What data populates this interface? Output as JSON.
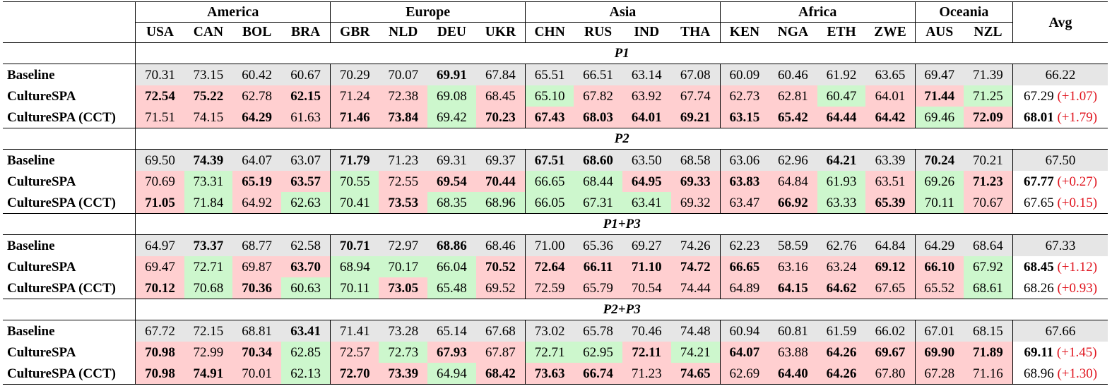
{
  "groups": [
    {
      "name": "America",
      "countries": [
        "USA",
        "CAN",
        "BOL",
        "BRA"
      ]
    },
    {
      "name": "Europe",
      "countries": [
        "GBR",
        "NLD",
        "DEU",
        "UKR"
      ]
    },
    {
      "name": "Asia",
      "countries": [
        "CHN",
        "RUS",
        "IND",
        "THA"
      ]
    },
    {
      "name": "Africa",
      "countries": [
        "KEN",
        "NGA",
        "ETH",
        "ZWE"
      ]
    },
    {
      "name": "Oceania",
      "countries": [
        "AUS",
        "NZL"
      ]
    }
  ],
  "avg_header": "Avg",
  "sections": [
    {
      "title": "P1",
      "rows": [
        {
          "label": "Baseline",
          "values": [
            "70.31",
            "73.15",
            "60.42",
            "60.67",
            "70.29",
            "70.07",
            "69.91",
            "67.84",
            "65.51",
            "66.51",
            "63.14",
            "67.08",
            "60.09",
            "60.46",
            "61.92",
            "63.65",
            "69.47",
            "71.39"
          ],
          "bold": [
            0,
            0,
            0,
            0,
            0,
            0,
            1,
            0,
            0,
            0,
            0,
            0,
            0,
            0,
            0,
            0,
            0,
            0
          ],
          "color": [
            "",
            "",
            "",
            "",
            "",
            "",
            "",
            "",
            "",
            "",
            "",
            "",
            "",
            "",
            "",
            "",
            "",
            ""
          ],
          "avg": "66.22",
          "avg_bold": false,
          "delta": ""
        },
        {
          "label": "CultureSPA",
          "values": [
            "72.54",
            "75.22",
            "62.78",
            "62.15",
            "71.24",
            "72.38",
            "69.08",
            "68.45",
            "65.10",
            "67.82",
            "63.92",
            "67.74",
            "62.73",
            "62.81",
            "60.47",
            "64.01",
            "71.44",
            "71.25"
          ],
          "bold": [
            1,
            1,
            0,
            1,
            0,
            0,
            0,
            0,
            0,
            0,
            0,
            0,
            0,
            0,
            0,
            0,
            1,
            0
          ],
          "color": [
            "r",
            "r",
            "r",
            "r",
            "r",
            "r",
            "g",
            "r",
            "g",
            "r",
            "r",
            "r",
            "r",
            "r",
            "g",
            "r",
            "r",
            "g"
          ],
          "avg": "67.29",
          "avg_bold": false,
          "delta": "(+1.07)"
        },
        {
          "label": "CultureSPA (CCT)",
          "values": [
            "71.51",
            "74.15",
            "64.29",
            "61.63",
            "71.46",
            "73.84",
            "69.42",
            "70.23",
            "67.43",
            "68.03",
            "64.01",
            "69.21",
            "63.15",
            "65.42",
            "64.44",
            "64.42",
            "69.46",
            "72.09"
          ],
          "bold": [
            0,
            0,
            1,
            0,
            1,
            1,
            0,
            1,
            1,
            1,
            1,
            1,
            1,
            1,
            1,
            1,
            0,
            1
          ],
          "color": [
            "r",
            "r",
            "r",
            "r",
            "r",
            "r",
            "g",
            "r",
            "r",
            "r",
            "r",
            "r",
            "r",
            "r",
            "r",
            "r",
            "g",
            "r"
          ],
          "avg": "68.01",
          "avg_bold": true,
          "delta": "(+1.79)"
        }
      ]
    },
    {
      "title": "P2",
      "rows": [
        {
          "label": "Baseline",
          "values": [
            "69.50",
            "74.39",
            "64.07",
            "63.07",
            "71.79",
            "71.23",
            "69.31",
            "69.37",
            "67.51",
            "68.60",
            "63.50",
            "68.58",
            "63.06",
            "62.96",
            "64.21",
            "63.39",
            "70.24",
            "70.21"
          ],
          "bold": [
            0,
            1,
            0,
            0,
            1,
            0,
            0,
            0,
            1,
            1,
            0,
            0,
            0,
            0,
            1,
            0,
            1,
            0
          ],
          "color": [
            "",
            "",
            "",
            "",
            "",
            "",
            "",
            "",
            "",
            "",
            "",
            "",
            "",
            "",
            "",
            "",
            "",
            ""
          ],
          "avg": "67.50",
          "avg_bold": false,
          "delta": ""
        },
        {
          "label": "CultureSPA",
          "values": [
            "70.69",
            "73.31",
            "65.19",
            "63.57",
            "70.55",
            "72.55",
            "69.54",
            "70.44",
            "66.65",
            "68.44",
            "64.95",
            "69.33",
            "63.83",
            "64.84",
            "61.93",
            "63.51",
            "69.26",
            "71.23"
          ],
          "bold": [
            0,
            0,
            1,
            1,
            0,
            0,
            1,
            1,
            0,
            0,
            1,
            1,
            1,
            0,
            0,
            0,
            0,
            1
          ],
          "color": [
            "r",
            "g",
            "r",
            "r",
            "g",
            "r",
            "r",
            "r",
            "g",
            "g",
            "r",
            "r",
            "r",
            "r",
            "g",
            "r",
            "g",
            "r"
          ],
          "avg": "67.77",
          "avg_bold": true,
          "delta": "(+0.27)"
        },
        {
          "label": "CultureSPA (CCT)",
          "values": [
            "71.05",
            "71.84",
            "64.92",
            "62.63",
            "70.41",
            "73.53",
            "68.35",
            "68.96",
            "66.05",
            "67.31",
            "63.41",
            "69.32",
            "63.47",
            "66.92",
            "63.33",
            "65.39",
            "70.11",
            "70.67"
          ],
          "bold": [
            1,
            0,
            0,
            0,
            0,
            1,
            0,
            0,
            0,
            0,
            0,
            0,
            0,
            1,
            0,
            1,
            0,
            0
          ],
          "color": [
            "r",
            "g",
            "r",
            "g",
            "g",
            "r",
            "g",
            "g",
            "g",
            "g",
            "g",
            "r",
            "r",
            "r",
            "g",
            "r",
            "g",
            "r"
          ],
          "avg": "67.65",
          "avg_bold": false,
          "delta": "(+0.15)"
        }
      ]
    },
    {
      "title": "P1+P3",
      "rows": [
        {
          "label": "Baseline",
          "values": [
            "64.97",
            "73.37",
            "68.77",
            "62.58",
            "70.71",
            "72.97",
            "68.86",
            "68.46",
            "71.00",
            "65.36",
            "69.27",
            "74.26",
            "62.23",
            "58.59",
            "62.76",
            "64.84",
            "64.29",
            "68.64"
          ],
          "bold": [
            0,
            1,
            0,
            0,
            1,
            0,
            1,
            0,
            0,
            0,
            0,
            0,
            0,
            0,
            0,
            0,
            0,
            0
          ],
          "color": [
            "",
            "",
            "",
            "",
            "",
            "",
            "",
            "",
            "",
            "",
            "",
            "",
            "",
            "",
            "",
            "",
            "",
            ""
          ],
          "avg": "67.33",
          "avg_bold": false,
          "delta": ""
        },
        {
          "label": "CultureSPA",
          "values": [
            "69.47",
            "72.71",
            "69.87",
            "63.70",
            "68.94",
            "70.17",
            "66.04",
            "70.52",
            "72.64",
            "66.11",
            "71.10",
            "74.72",
            "66.65",
            "63.16",
            "63.24",
            "69.12",
            "66.10",
            "67.92"
          ],
          "bold": [
            0,
            0,
            0,
            1,
            0,
            0,
            0,
            1,
            1,
            1,
            1,
            1,
            1,
            0,
            0,
            1,
            1,
            0
          ],
          "color": [
            "r",
            "g",
            "r",
            "r",
            "g",
            "g",
            "g",
            "r",
            "r",
            "r",
            "r",
            "r",
            "r",
            "r",
            "r",
            "r",
            "r",
            "g"
          ],
          "avg": "68.45",
          "avg_bold": true,
          "delta": "(+1.12)"
        },
        {
          "label": "CultureSPA (CCT)",
          "values": [
            "70.12",
            "70.68",
            "70.36",
            "60.63",
            "70.11",
            "73.05",
            "65.48",
            "69.52",
            "72.59",
            "65.79",
            "70.54",
            "74.44",
            "64.89",
            "64.15",
            "64.62",
            "67.65",
            "65.52",
            "68.61"
          ],
          "bold": [
            1,
            0,
            1,
            0,
            0,
            1,
            0,
            0,
            0,
            0,
            0,
            0,
            0,
            1,
            1,
            0,
            0,
            0
          ],
          "color": [
            "r",
            "g",
            "r",
            "g",
            "g",
            "r",
            "g",
            "r",
            "r",
            "r",
            "r",
            "r",
            "r",
            "r",
            "r",
            "r",
            "r",
            "g"
          ],
          "avg": "68.26",
          "avg_bold": false,
          "delta": "(+0.93)"
        }
      ]
    },
    {
      "title": "P2+P3",
      "rows": [
        {
          "label": "Baseline",
          "values": [
            "67.72",
            "72.15",
            "68.81",
            "63.41",
            "71.41",
            "73.28",
            "65.14",
            "67.68",
            "73.02",
            "65.78",
            "70.46",
            "74.48",
            "60.94",
            "60.81",
            "61.59",
            "66.02",
            "67.01",
            "68.15"
          ],
          "bold": [
            0,
            0,
            0,
            1,
            0,
            0,
            0,
            0,
            0,
            0,
            0,
            0,
            0,
            0,
            0,
            0,
            0,
            0
          ],
          "color": [
            "",
            "",
            "",
            "",
            "",
            "",
            "",
            "",
            "",
            "",
            "",
            "",
            "",
            "",
            "",
            "",
            "",
            ""
          ],
          "avg": "67.66",
          "avg_bold": false,
          "delta": ""
        },
        {
          "label": "CultureSPA",
          "values": [
            "70.98",
            "72.99",
            "70.34",
            "62.85",
            "72.57",
            "72.73",
            "67.93",
            "67.87",
            "72.71",
            "62.95",
            "72.11",
            "74.21",
            "64.07",
            "63.88",
            "64.26",
            "69.67",
            "69.90",
            "71.89"
          ],
          "bold": [
            1,
            0,
            1,
            0,
            0,
            0,
            1,
            0,
            0,
            0,
            1,
            0,
            1,
            0,
            1,
            1,
            1,
            1
          ],
          "color": [
            "r",
            "r",
            "r",
            "g",
            "r",
            "g",
            "r",
            "r",
            "g",
            "g",
            "r",
            "g",
            "r",
            "r",
            "r",
            "r",
            "r",
            "r"
          ],
          "avg": "69.11",
          "avg_bold": true,
          "delta": "(+1.45)"
        },
        {
          "label": "CultureSPA (CCT)",
          "values": [
            "70.98",
            "74.91",
            "70.01",
            "62.13",
            "72.70",
            "73.39",
            "64.94",
            "68.42",
            "73.63",
            "66.74",
            "71.23",
            "74.65",
            "62.69",
            "64.40",
            "64.26",
            "67.80",
            "67.28",
            "71.16"
          ],
          "bold": [
            1,
            1,
            0,
            0,
            1,
            1,
            0,
            1,
            1,
            1,
            0,
            1,
            0,
            1,
            1,
            0,
            0,
            0
          ],
          "color": [
            "r",
            "r",
            "r",
            "g",
            "r",
            "r",
            "g",
            "r",
            "r",
            "r",
            "r",
            "r",
            "r",
            "r",
            "r",
            "r",
            "r",
            "r"
          ],
          "avg": "68.96",
          "avg_bold": false,
          "delta": "(+1.30)"
        }
      ]
    }
  ]
}
